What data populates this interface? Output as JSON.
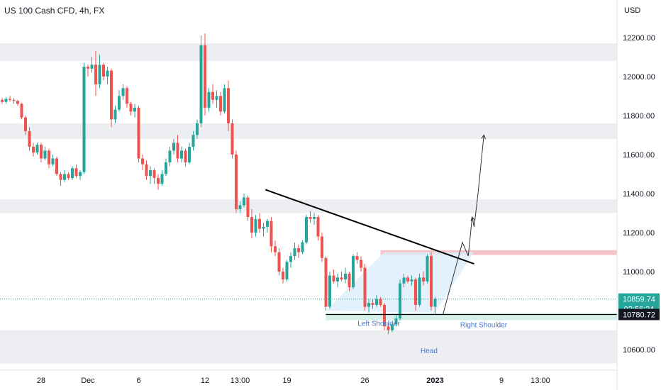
{
  "title": "US 100 Cash CFD, 4h, FX",
  "currency": "USD",
  "colors": {
    "up": "#26a69a",
    "down": "#ef5350",
    "zone": "#eceef2",
    "resistance": "#f7c5c9",
    "triangle": "#dceefb",
    "support": "#d5f0ea",
    "current": "#26a69a"
  },
  "price_tags": {
    "current": "10859.74",
    "countdown": "02:56:24",
    "support": "10780.72"
  },
  "annotations": {
    "left_shoulder": "Left Shoulder",
    "head": "Head",
    "right_shoulder": "Right Shoulder"
  },
  "chart_data": {
    "type": "candlestick",
    "ylim": [
      10510,
      12290
    ],
    "ytick_values": [
      12200,
      12000,
      11800,
      11600,
      11400,
      11200,
      11000,
      10600
    ],
    "ytick_labels": [
      "12200.00",
      "12000.00",
      "11800.00",
      "11600.00",
      "11400.00",
      "11200.00",
      "11000.00",
      "10600.00"
    ],
    "xtick_labels": [
      {
        "label": "28",
        "bar": 10
      },
      {
        "label": "Dec",
        "bar": 22
      },
      {
        "label": "6",
        "bar": 35
      },
      {
        "label": "12",
        "bar": 52
      },
      {
        "label": "13:00",
        "bar": 61
      },
      {
        "label": "19",
        "bar": 73
      },
      {
        "label": "26",
        "bar": 93
      },
      {
        "label": "2023",
        "bar": 111,
        "bold": true
      },
      {
        "label": "9",
        "bar": 128
      },
      {
        "label": "13:00",
        "bar": 138
      }
    ],
    "zones": [
      {
        "low": 12080,
        "high": 12170
      },
      {
        "low": 11680,
        "high": 11760
      },
      {
        "low": 11300,
        "high": 11370
      },
      {
        "low": 10530,
        "high": 10700
      }
    ],
    "resistance_band": {
      "low": 11085,
      "high": 11110
    },
    "support_line": 10780.72,
    "current_price": 10859.74,
    "neckline": [
      {
        "bar": 67.5,
        "price": 11420
      },
      {
        "bar": 121,
        "price": 11040
      }
    ],
    "projection": [
      {
        "bar": 113,
        "price": 10780
      },
      {
        "bar": 118,
        "price": 11150
      },
      {
        "bar": 119.5,
        "price": 11080
      },
      {
        "bar": 120.5,
        "price": 11280
      },
      {
        "bar": 121,
        "price": 11230
      },
      {
        "bar": 122,
        "price": 11400
      },
      {
        "bar": 123.5,
        "price": 11700
      }
    ],
    "candles": [
      [
        11880,
        11890,
        11860,
        11870
      ],
      [
        11870,
        11895,
        11860,
        11885
      ],
      [
        11885,
        11900,
        11870,
        11880
      ],
      [
        11880,
        11890,
        11860,
        11875
      ],
      [
        11875,
        11880,
        11850,
        11860
      ],
      [
        11860,
        11865,
        11780,
        11790
      ],
      [
        11790,
        11800,
        11700,
        11720
      ],
      [
        11720,
        11740,
        11620,
        11640
      ],
      [
        11640,
        11660,
        11590,
        11610
      ],
      [
        11610,
        11660,
        11600,
        11650
      ],
      [
        11650,
        11660,
        11560,
        11580
      ],
      [
        11580,
        11640,
        11570,
        11620
      ],
      [
        11620,
        11630,
        11530,
        11550
      ],
      [
        11550,
        11600,
        11540,
        11580
      ],
      [
        11580,
        11590,
        11490,
        11500
      ],
      [
        11500,
        11510,
        11440,
        11470
      ],
      [
        11470,
        11520,
        11460,
        11500
      ],
      [
        11500,
        11510,
        11470,
        11480
      ],
      [
        11480,
        11540,
        11470,
        11530
      ],
      [
        11530,
        11550,
        11480,
        11490
      ],
      [
        11490,
        11520,
        11470,
        11510
      ],
      [
        11510,
        12070,
        11500,
        12050
      ],
      [
        12050,
        12060,
        12000,
        12040
      ],
      [
        12040,
        12100,
        12020,
        12060
      ],
      [
        12060,
        12130,
        11900,
        11960
      ],
      [
        11960,
        12110,
        11940,
        12060
      ],
      [
        12060,
        12070,
        11980,
        12000
      ],
      [
        12000,
        12050,
        11960,
        12030
      ],
      [
        12030,
        12040,
        11740,
        11780
      ],
      [
        11780,
        11850,
        11760,
        11830
      ],
      [
        11830,
        11930,
        11820,
        11900
      ],
      [
        11900,
        11960,
        11880,
        11940
      ],
      [
        11940,
        11950,
        11840,
        11860
      ],
      [
        11860,
        11870,
        11800,
        11820
      ],
      [
        11820,
        11860,
        11790,
        11840
      ],
      [
        11840,
        11850,
        11560,
        11580
      ],
      [
        11580,
        11600,
        11520,
        11550
      ],
      [
        11550,
        11570,
        11470,
        11490
      ],
      [
        11490,
        11540,
        11450,
        11520
      ],
      [
        11520,
        11530,
        11450,
        11480
      ],
      [
        11480,
        11500,
        11420,
        11450
      ],
      [
        11450,
        11520,
        11440,
        11500
      ],
      [
        11500,
        11580,
        11490,
        11560
      ],
      [
        11560,
        11640,
        11540,
        11620
      ],
      [
        11620,
        11680,
        11600,
        11660
      ],
      [
        11660,
        11700,
        11560,
        11580
      ],
      [
        11580,
        11640,
        11560,
        11620
      ],
      [
        11620,
        11630,
        11540,
        11560
      ],
      [
        11560,
        11660,
        11550,
        11640
      ],
      [
        11640,
        11720,
        11620,
        11700
      ],
      [
        11700,
        11780,
        11680,
        11760
      ],
      [
        11760,
        12210,
        11740,
        12160
      ],
      [
        12160,
        12220,
        11800,
        11840
      ],
      [
        11840,
        11940,
        11820,
        11920
      ],
      [
        11920,
        11960,
        11860,
        11880
      ],
      [
        11880,
        11930,
        11840,
        11900
      ],
      [
        11900,
        11920,
        11800,
        11820
      ],
      [
        11820,
        11960,
        11810,
        11940
      ],
      [
        11940,
        11980,
        11720,
        11760
      ],
      [
        11760,
        11780,
        11580,
        11600
      ],
      [
        11600,
        11620,
        11300,
        11320
      ],
      [
        11320,
        11360,
        11300,
        11340
      ],
      [
        11340,
        11400,
        11330,
        11380
      ],
      [
        11380,
        11390,
        11260,
        11280
      ],
      [
        11280,
        11320,
        11170,
        11200
      ],
      [
        11200,
        11290,
        11180,
        11270
      ],
      [
        11270,
        11300,
        11200,
        11220
      ],
      [
        11220,
        11250,
        11180,
        11230
      ],
      [
        11230,
        11270,
        11200,
        11260
      ],
      [
        11260,
        11280,
        11100,
        11130
      ],
      [
        11130,
        11160,
        11080,
        11100
      ],
      [
        11100,
        11120,
        10980,
        11000
      ],
      [
        11000,
        11020,
        10940,
        10960
      ],
      [
        10960,
        11060,
        10950,
        11050
      ],
      [
        11050,
        11100,
        11020,
        11080
      ],
      [
        11080,
        11150,
        11060,
        11120
      ],
      [
        11120,
        11140,
        11070,
        11100
      ],
      [
        11100,
        11160,
        11090,
        11150
      ],
      [
        11150,
        11290,
        11140,
        11280
      ],
      [
        11280,
        11310,
        11250,
        11270
      ],
      [
        11270,
        11300,
        11240,
        11280
      ],
      [
        11280,
        11290,
        11160,
        11180
      ],
      [
        11180,
        11200,
        11050,
        11070
      ],
      [
        11070,
        11080,
        10800,
        10820
      ],
      [
        10820,
        11000,
        10810,
        10980
      ],
      [
        10980,
        11010,
        10940,
        10950
      ],
      [
        10950,
        10990,
        10920,
        10970
      ],
      [
        10970,
        11000,
        10950,
        10960
      ],
      [
        10960,
        11020,
        10940,
        10990
      ],
      [
        10990,
        11000,
        10900,
        10920
      ],
      [
        10920,
        11090,
        10910,
        11080
      ],
      [
        11080,
        11100,
        11040,
        11060
      ],
      [
        11060,
        11080,
        11000,
        11020
      ],
      [
        11020,
        11040,
        10800,
        10820
      ],
      [
        10820,
        10860,
        10790,
        10840
      ],
      [
        10840,
        10860,
        10810,
        10830
      ],
      [
        10830,
        10880,
        10820,
        10860
      ],
      [
        10860,
        10870,
        10820,
        10830
      ],
      [
        10830,
        10840,
        10700,
        10720
      ],
      [
        10720,
        10740,
        10680,
        10700
      ],
      [
        10700,
        10740,
        10690,
        10730
      ],
      [
        10730,
        10780,
        10720,
        10760
      ],
      [
        10760,
        10960,
        10750,
        10940
      ],
      [
        10940,
        10990,
        10920,
        10970
      ],
      [
        10970,
        10980,
        10940,
        10950
      ],
      [
        10950,
        10980,
        10930,
        10960
      ],
      [
        10960,
        10970,
        10800,
        10830
      ],
      [
        10830,
        10990,
        10820,
        10970
      ],
      [
        10970,
        11000,
        10930,
        10950
      ],
      [
        10950,
        11090,
        10940,
        11080
      ],
      [
        11080,
        11100,
        10800,
        10820
      ],
      [
        10820,
        10870,
        10780,
        10860
      ]
    ]
  }
}
